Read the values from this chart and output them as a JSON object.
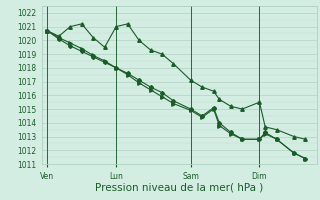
{
  "title": "Pression niveau de la mer( hPa )",
  "bg_color": "#d4ede2",
  "grid_color_major": "#a8ccba",
  "grid_color_minor": "#c0ddd0",
  "line_color": "#1a5c28",
  "ylim": [
    1011,
    1022.5
  ],
  "yticks": [
    1011,
    1012,
    1013,
    1014,
    1015,
    1016,
    1017,
    1018,
    1019,
    1020,
    1021,
    1022
  ],
  "day_labels": [
    "Ven",
    "Lun",
    "Sam",
    "Dim"
  ],
  "day_positions": [
    0.5,
    6.5,
    13.0,
    19.0
  ],
  "vline_positions": [
    0.5,
    6.5,
    13.0,
    19.0
  ],
  "xlim": [
    0,
    24
  ],
  "series1_x": [
    0.5,
    1.5,
    2.5,
    3.5,
    4.5,
    5.5,
    6.5,
    7.5,
    8.5,
    9.5,
    10.5,
    11.5,
    13.0,
    14.0,
    15.0,
    15.5,
    16.5,
    17.5,
    19.0,
    19.5,
    20.5,
    22.0,
    23.0
  ],
  "series1_y": [
    1020.7,
    1020.3,
    1021.0,
    1021.2,
    1020.2,
    1019.5,
    1021.0,
    1021.2,
    1020.0,
    1019.3,
    1019.0,
    1018.3,
    1017.1,
    1016.6,
    1016.3,
    1015.7,
    1015.2,
    1015.0,
    1015.5,
    1013.7,
    1013.5,
    1013.0,
    1012.8
  ],
  "series2_x": [
    0.5,
    1.5,
    2.5,
    3.5,
    4.5,
    5.5,
    6.5,
    7.5,
    8.5,
    9.5,
    10.5,
    11.5,
    13.0,
    14.0,
    15.0,
    15.5,
    16.5,
    17.5,
    19.0,
    19.5,
    20.5,
    22.0,
    23.0
  ],
  "series2_y": [
    1020.7,
    1020.1,
    1019.6,
    1019.2,
    1018.8,
    1018.4,
    1018.0,
    1017.6,
    1017.1,
    1016.6,
    1016.2,
    1015.6,
    1015.0,
    1014.5,
    1015.1,
    1014.0,
    1013.3,
    1012.8,
    1012.8,
    1013.3,
    1012.8,
    1011.8,
    1011.4
  ],
  "series3_x": [
    0.5,
    1.5,
    2.5,
    3.5,
    4.5,
    5.5,
    6.5,
    7.5,
    8.5,
    9.5,
    10.5,
    11.5,
    13.0,
    14.0,
    15.0,
    15.5,
    16.5,
    17.5,
    19.0,
    19.5,
    20.5,
    22.0,
    23.0
  ],
  "series3_y": [
    1020.7,
    1020.2,
    1019.8,
    1019.4,
    1018.9,
    1018.5,
    1018.0,
    1017.5,
    1016.9,
    1016.4,
    1015.9,
    1015.4,
    1014.9,
    1014.4,
    1015.0,
    1013.8,
    1013.2,
    1012.8,
    1012.8,
    1013.2,
    1012.8,
    1011.8,
    1011.4
  ],
  "ylabel_fontsize": 5.5,
  "xlabel_fontsize": 7.5,
  "xlabel_labelpad": 1,
  "tick_fontsize": 5.5
}
